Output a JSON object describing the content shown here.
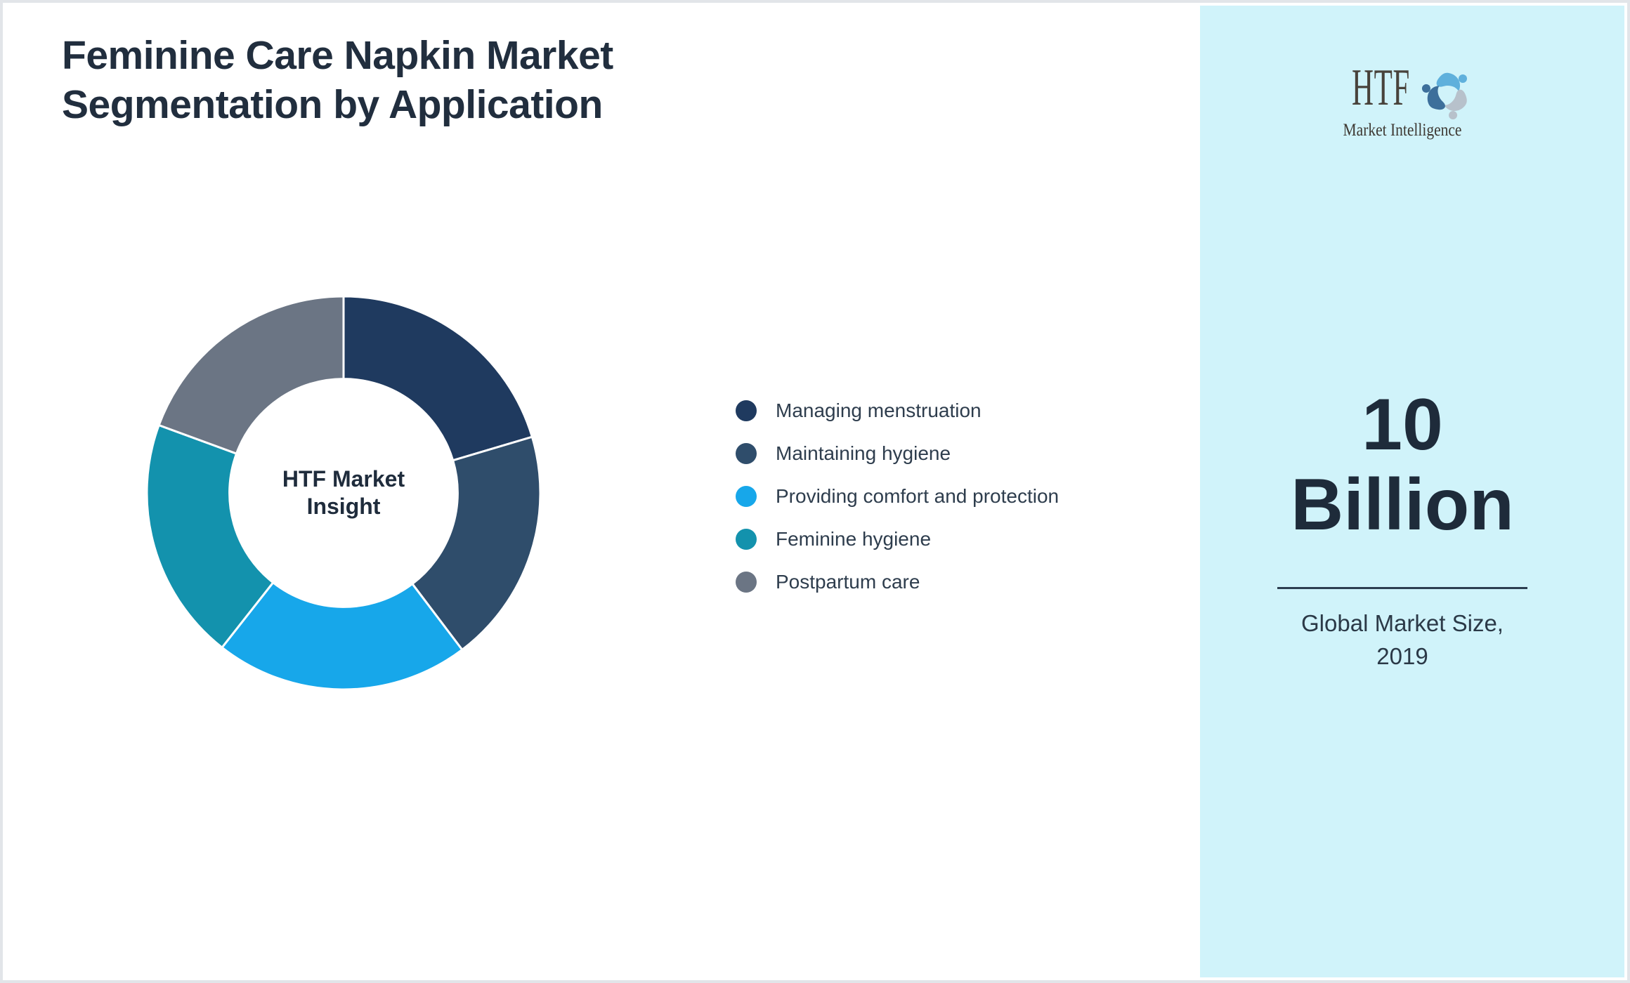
{
  "page": {
    "title": "Feminine Care Napkin Market Segmentation by Application"
  },
  "chart_data": {
    "type": "pie",
    "subtype": "donut",
    "title": "Feminine Care Napkin Market Segmentation by Application",
    "center_label": "HTF Market Insight",
    "labels": [
      "Managing menstruation",
      "Maintaining hygiene",
      "Providing comfort and protection",
      "Feminine hygiene",
      "Postpartum care"
    ],
    "values": [
      20.4,
      19.3,
      20.9,
      20.0,
      19.4
    ],
    "colors": [
      "#1f3a5f",
      "#2f4d6b",
      "#17a7ea",
      "#1392ad",
      "#6b7584"
    ],
    "start_angle_deg": 0,
    "direction": "clockwise",
    "inner_radius_ratio": 0.58,
    "slice_gap_color": "#ffffff",
    "data_labels": "none",
    "legend_position": "right"
  },
  "sidebar": {
    "background_color": "#d0f3fa",
    "logo": {
      "text": "HTF",
      "subtext": "Market Intelligence",
      "swirl_colors": [
        "#5fb0dc",
        "#b7c1cb",
        "#3d6f9b"
      ]
    },
    "market_size_value": "10 Billion",
    "market_size_caption": "Global Market Size, 2019"
  },
  "theme": {
    "title_color": "#212e3e",
    "legend_text_color": "#2e3d4d",
    "stat_text_color": "#1e2b3a",
    "divider_color": "#2c3e50",
    "page_border_color": "#e2e5e9"
  }
}
